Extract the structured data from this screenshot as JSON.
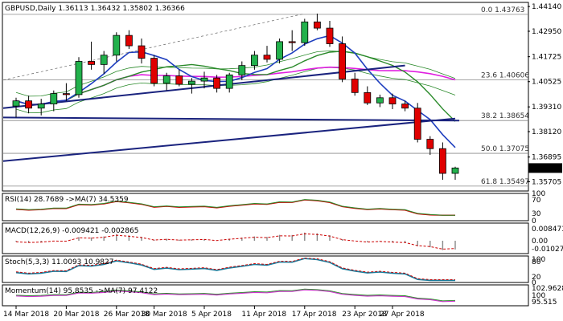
{
  "chart_data": {
    "type": "candlestick",
    "instrument": "GBPUSD",
    "timeframe": "Daily",
    "current_ohlc": {
      "open": "1.36113",
      "high": "1.36432",
      "low": "1.35802",
      "close": "1.36366"
    },
    "price_scale": [
      "1.44140",
      "1.42950",
      "1.41725",
      "1.40525",
      "1.39310",
      "1.38120",
      "1.36895",
      "1.35705"
    ],
    "current_price_label": "1.36366",
    "ylim": [
      1.353,
      1.443
    ],
    "fib_levels": [
      {
        "ratio": "0.0",
        "price": "1.43763",
        "value": 1.43763
      },
      {
        "ratio": "23.6",
        "price": "1.40606",
        "value": 1.40606
      },
      {
        "ratio": "38.2",
        "price": "1.38654",
        "value": 1.38654
      },
      {
        "ratio": "50.0",
        "price": "1.37075",
        "value": 1.37075
      },
      {
        "ratio": "61.8",
        "price": "1.35497",
        "value": 1.35497
      }
    ],
    "x_labels": [
      "14 Mar 2018",
      "20 Mar 2018",
      "26 Mar 2018",
      "30 Mar 2018",
      "5 Apr 2018",
      "11 Apr 2018",
      "17 Apr 2018",
      "23 Apr 2018",
      "27 Apr 2018"
    ],
    "candles": [
      {
        "o": 1.3935,
        "h": 1.3975,
        "l": 1.388,
        "c": 1.396
      },
      {
        "o": 1.396,
        "h": 1.3985,
        "l": 1.39,
        "c": 1.3925
      },
      {
        "o": 1.3925,
        "h": 1.397,
        "l": 1.389,
        "c": 1.3945
      },
      {
        "o": 1.3945,
        "h": 1.401,
        "l": 1.391,
        "c": 1.3995
      },
      {
        "o": 1.3995,
        "h": 1.4045,
        "l": 1.396,
        "c": 1.399
      },
      {
        "o": 1.399,
        "h": 1.417,
        "l": 1.3975,
        "c": 1.415
      },
      {
        "o": 1.415,
        "h": 1.4245,
        "l": 1.411,
        "c": 1.4135
      },
      {
        "o": 1.4135,
        "h": 1.42,
        "l": 1.409,
        "c": 1.418
      },
      {
        "o": 1.418,
        "h": 1.429,
        "l": 1.415,
        "c": 1.4275
      },
      {
        "o": 1.4275,
        "h": 1.43,
        "l": 1.421,
        "c": 1.4225
      },
      {
        "o": 1.4225,
        "h": 1.426,
        "l": 1.414,
        "c": 1.4165
      },
      {
        "o": 1.4165,
        "h": 1.418,
        "l": 1.403,
        "c": 1.4045
      },
      {
        "o": 1.4045,
        "h": 1.4095,
        "l": 1.401,
        "c": 1.408
      },
      {
        "o": 1.408,
        "h": 1.411,
        "l": 1.403,
        "c": 1.404
      },
      {
        "o": 1.404,
        "h": 1.407,
        "l": 1.3995,
        "c": 1.4055
      },
      {
        "o": 1.4055,
        "h": 1.41,
        "l": 1.402,
        "c": 1.407
      },
      {
        "o": 1.407,
        "h": 1.4085,
        "l": 1.4,
        "c": 1.402
      },
      {
        "o": 1.402,
        "h": 1.4095,
        "l": 1.4,
        "c": 1.4085
      },
      {
        "o": 1.4085,
        "h": 1.415,
        "l": 1.406,
        "c": 1.413
      },
      {
        "o": 1.413,
        "h": 1.42,
        "l": 1.411,
        "c": 1.418
      },
      {
        "o": 1.418,
        "h": 1.4225,
        "l": 1.4145,
        "c": 1.416
      },
      {
        "o": 1.416,
        "h": 1.426,
        "l": 1.414,
        "c": 1.4245
      },
      {
        "o": 1.4245,
        "h": 1.43,
        "l": 1.42,
        "c": 1.424
      },
      {
        "o": 1.424,
        "h": 1.4355,
        "l": 1.4225,
        "c": 1.434
      },
      {
        "o": 1.434,
        "h": 1.438,
        "l": 1.43,
        "c": 1.431
      },
      {
        "o": 1.431,
        "h": 1.4345,
        "l": 1.422,
        "c": 1.4235
      },
      {
        "o": 1.4235,
        "h": 1.427,
        "l": 1.405,
        "c": 1.4065
      },
      {
        "o": 1.4065,
        "h": 1.4095,
        "l": 1.3985,
        "c": 1.4
      },
      {
        "o": 1.4,
        "h": 1.403,
        "l": 1.394,
        "c": 1.395
      },
      {
        "o": 1.395,
        "h": 1.399,
        "l": 1.393,
        "c": 1.3975
      },
      {
        "o": 1.3975,
        "h": 1.3995,
        "l": 1.392,
        "c": 1.3945
      },
      {
        "o": 1.3945,
        "h": 1.396,
        "l": 1.391,
        "c": 1.3925
      },
      {
        "o": 1.3925,
        "h": 1.395,
        "l": 1.376,
        "c": 1.3775
      },
      {
        "o": 1.3775,
        "h": 1.379,
        "l": 1.37,
        "c": 1.373
      },
      {
        "o": 1.373,
        "h": 1.376,
        "l": 1.358,
        "c": 1.3611
      },
      {
        "o": 1.3611,
        "h": 1.3643,
        "l": 1.358,
        "c": 1.3637
      }
    ],
    "indicators": [
      {
        "label": "RSI(14) 28.7689 ->MA(7) 34.5359",
        "scale": [
          "100",
          "70",
          "30",
          "0"
        ]
      },
      {
        "label": "MACD(12,26,9) -0.009421 -0.002865",
        "scale": [
          "0.008473",
          "0.00",
          "-0.010273"
        ]
      },
      {
        "label": "Stoch(5,3,3) 11.0093 10.9827",
        "scale": [
          "100",
          "80",
          "20",
          "0"
        ]
      },
      {
        "label": "Momentum(14) 95.8535 ->MA(7) 97.4122",
        "scale": [
          "102.9628",
          "100",
          "95.515"
        ]
      }
    ],
    "colors": {
      "bull": "#22b14c",
      "bear": "#e00000",
      "ma_blue": "#1f3fbf",
      "ma_magenta": "#e020e0",
      "ma_green": "#2a8a2a",
      "trend_navy": "#1a237e",
      "signal_red": "#cc0000"
    }
  }
}
